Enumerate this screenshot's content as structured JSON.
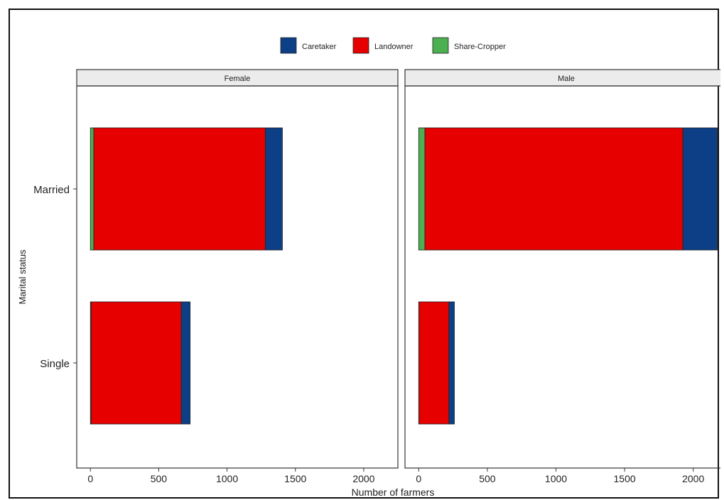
{
  "chart_data": {
    "type": "bar",
    "orientation": "horizontal",
    "stacked": true,
    "xlabel": "Number of farmers",
    "ylabel": "Marital status",
    "xticks": [
      0,
      500,
      1000,
      1500,
      2000
    ],
    "xlim": [
      -100,
      2250
    ],
    "categories": [
      "Married",
      "Single"
    ],
    "legend": {
      "position": "top",
      "entries": [
        {
          "name": "Caretaker",
          "color": "#0d3f86"
        },
        {
          "name": "Landowner",
          "color": "#e60000"
        },
        {
          "name": "Share-Cropper",
          "color": "#4caf50"
        }
      ]
    },
    "stack_order": [
      "Share-Cropper",
      "Landowner",
      "Caretaker"
    ],
    "panels": [
      {
        "title": "Female",
        "values": {
          "Married": {
            "Share-Cropper": 25,
            "Landowner": 1255,
            "Caretaker": 125
          },
          "Single": {
            "Share-Cropper": 5,
            "Landowner": 660,
            "Caretaker": 65
          }
        }
      },
      {
        "title": "Male",
        "values": {
          "Married": {
            "Share-Cropper": 45,
            "Landowner": 1880,
            "Caretaker": 250
          },
          "Single": {
            "Share-Cropper": 2,
            "Landowner": 218,
            "Caretaker": 40
          }
        }
      }
    ]
  }
}
